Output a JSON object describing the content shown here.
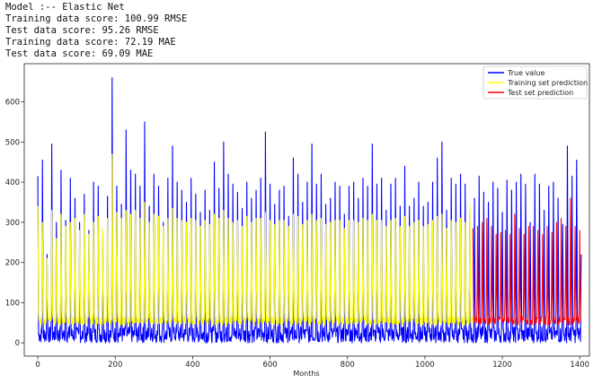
{
  "output": {
    "lines": [
      "Model :-- Elastic Net",
      "Training data score: 100.99 RMSE",
      "Test data score: 95.26 RMSE",
      "Training data score: 72.19 MAE",
      "Test data score: 69.09 MAE"
    ]
  },
  "chart_data": {
    "type": "line",
    "xlabel": "Months",
    "ylabel": "",
    "xlim": [
      -35,
      1425
    ],
    "ylim": [
      -33,
      695
    ],
    "xticks": [
      0,
      200,
      400,
      600,
      800,
      1000,
      1200,
      1400
    ],
    "yticks": [
      0,
      100,
      200,
      300,
      400,
      500,
      600
    ],
    "grid": false,
    "legend_position": "top-right",
    "period": 12,
    "colors": {
      "true": "#0000ff",
      "train": "#ffff00",
      "test": "#ff0000"
    },
    "series": [
      {
        "name": "True value",
        "color": "#0000ff",
        "x_range": [
          0,
          1404
        ],
        "cycle_peaks": [
          415,
          455,
          220,
          495,
          300,
          430,
          305,
          410,
          360,
          300,
          370,
          280,
          400,
          390,
          280,
          365,
          660,
          390,
          345,
          530,
          430,
          420,
          390,
          550,
          340,
          420,
          390,
          300,
          410,
          490,
          400,
          380,
          350,
          410,
          370,
          325,
          380,
          330,
          450,
          385,
          500,
          420,
          395,
          375,
          335,
          400,
          360,
          380,
          410,
          525,
          395,
          345,
          380,
          390,
          315,
          460,
          420,
          350,
          400,
          495,
          395,
          420,
          345,
          360,
          400,
          390,
          320,
          390,
          400,
          360,
          410,
          390,
          495,
          395,
          410,
          330,
          395,
          410,
          340,
          440,
          340,
          360,
          400,
          340,
          350,
          400,
          460,
          500,
          330,
          410,
          395,
          420,
          395,
          325,
          360,
          415,
          375,
          350,
          400,
          385,
          325,
          405,
          380,
          400,
          420,
          395,
          300,
          420,
          395,
          330,
          390,
          400,
          360,
          295,
          490
        ],
        "baseline_low": 0,
        "baseline_high": 40
      },
      {
        "name": "Training set prediction",
        "color": "#ffff00",
        "x_range": [
          0,
          1124
        ],
        "cycle_peaks": [
          340,
          300,
          210,
          330,
          260,
          320,
          290,
          300,
          310,
          280,
          320,
          270,
          300,
          315,
          285,
          310,
          470,
          325,
          310,
          330,
          320,
          330,
          310,
          350,
          300,
          320,
          315,
          290,
          310,
          335,
          310,
          305,
          300,
          310,
          305,
          290,
          305,
          295,
          320,
          310,
          330,
          310,
          300,
          305,
          290,
          315,
          300,
          310,
          310,
          325,
          305,
          295,
          305,
          305,
          290,
          320,
          315,
          295,
          305,
          320,
          305,
          310,
          295,
          300,
          305,
          305,
          285,
          305,
          305,
          300,
          310,
          305,
          320,
          305,
          305,
          290,
          305,
          310,
          290,
          315,
          290,
          300,
          305,
          290,
          295,
          305,
          315,
          320,
          285,
          305,
          300,
          310,
          300
        ],
        "baseline": 45
      },
      {
        "name": "Test set prediction",
        "color": "#ff0000",
        "x_range": [
          1124,
          1404
        ],
        "cycle_peaks": [
          285,
          290,
          300,
          310,
          290,
          270,
          275,
          280,
          270,
          320,
          285,
          270,
          290,
          290,
          280,
          270,
          290,
          275,
          300,
          310,
          290,
          360,
          290,
          280
        ],
        "baseline": 45
      }
    ]
  }
}
